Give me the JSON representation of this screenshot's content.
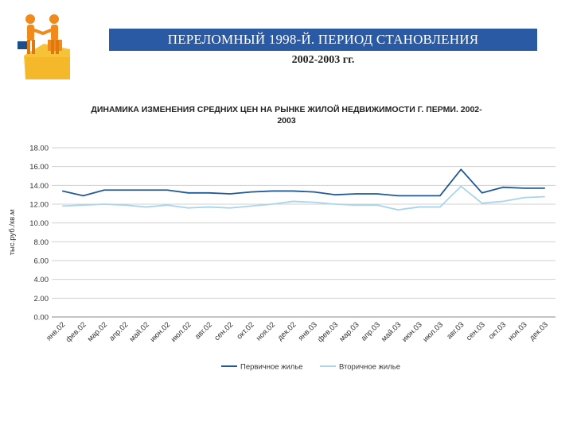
{
  "header": {
    "title": "ПЕРЕЛОМНЫЙ 1998-Й. ПЕРИОД СТАНОВЛЕНИЯ",
    "subtitle": "2002-2003 гг."
  },
  "chart_data": {
    "type": "line",
    "title_line1": "ДИНАМИКА ИЗМЕНЕНИЯ СРЕДНИХ ЦЕН НА РЫНКЕ ЖИЛОЙ НЕДВИЖИМОСТИ Г. ПЕРМИ. 2002-",
    "title_line2": "2003",
    "ylabel": "тыс.руб./кв.м",
    "xlabel": "",
    "ylim": [
      0,
      18
    ],
    "yticks": [
      "0.00",
      "2.00",
      "4.00",
      "6.00",
      "8.00",
      "10.00",
      "12.00",
      "14.00",
      "16.00",
      "18.00"
    ],
    "grid": true,
    "legend_position": "bottom",
    "categories": [
      "янв.02",
      "фев.02",
      "мар.02",
      "апр.02",
      "май.02",
      "июн.02",
      "июл.02",
      "авг.02",
      "сен.02",
      "окт.02",
      "ноя.02",
      "дек.02",
      "янв.03",
      "фев.03",
      "мар.03",
      "апр.03",
      "май.03",
      "июн.03",
      "июл.03",
      "авг.03",
      "сен.03",
      "окт.03",
      "ноя.03",
      "дек.03"
    ],
    "series": [
      {
        "name": "Первичное жилье",
        "color": "#1f5a96",
        "values": [
          13.4,
          12.9,
          13.5,
          13.5,
          13.5,
          13.5,
          13.2,
          13.2,
          13.1,
          13.3,
          13.4,
          13.4,
          13.3,
          13.0,
          13.1,
          13.1,
          12.9,
          12.9,
          12.9,
          15.7,
          13.2,
          13.8,
          13.7,
          13.7
        ]
      },
      {
        "name": "Вторичное жилье",
        "color": "#a8d4ec",
        "values": [
          11.8,
          11.9,
          12.0,
          11.9,
          11.7,
          11.9,
          11.6,
          11.7,
          11.6,
          11.8,
          12.0,
          12.3,
          12.2,
          12.0,
          11.9,
          11.9,
          11.4,
          11.7,
          11.7,
          13.9,
          12.1,
          12.3,
          12.7,
          12.8
        ]
      }
    ]
  }
}
